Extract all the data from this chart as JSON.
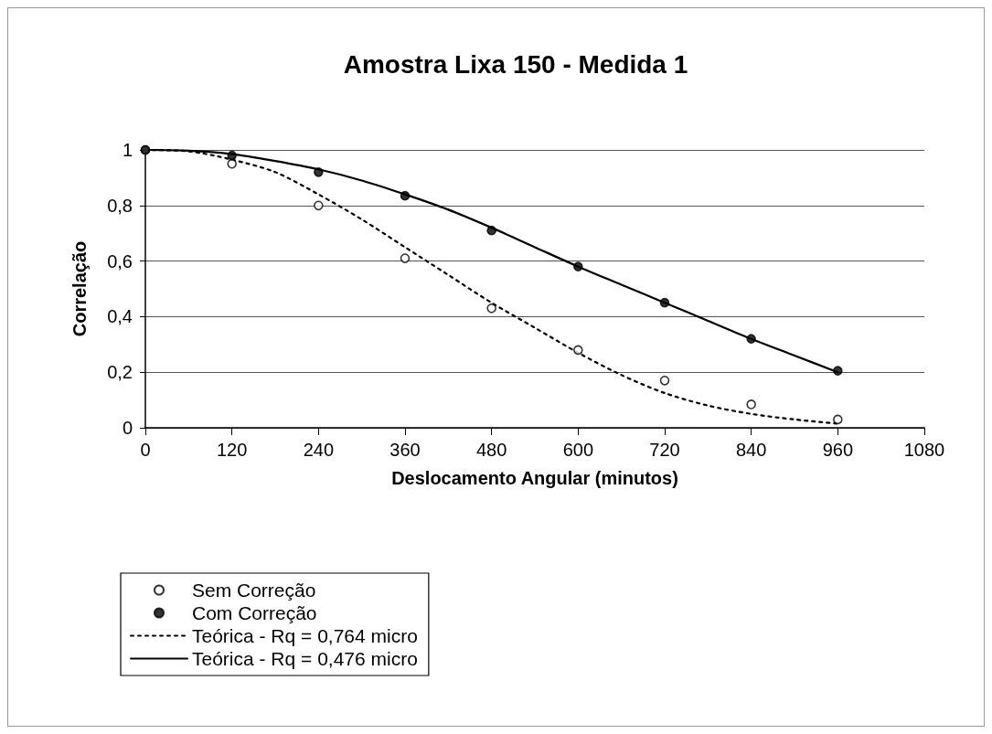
{
  "chart_data": {
    "type": "scatter",
    "title": "Amostra Lixa 150 - Medida 1",
    "xlabel": "Deslocamento Angular (minutos)",
    "ylabel": "Correlação",
    "xlim": [
      0,
      1080
    ],
    "xticks": [
      0,
      120,
      240,
      360,
      480,
      600,
      720,
      840,
      960,
      1080
    ],
    "ylim": [
      0,
      1
    ],
    "yticks": [
      0,
      {
        "value": 0.2,
        "label": "0,2"
      },
      {
        "value": 0.4,
        "label": "0,4"
      },
      {
        "value": 0.6,
        "label": "0,6"
      },
      {
        "value": 0.8,
        "label": "0,8"
      },
      1
    ],
    "grid": "y",
    "legend": "bottom left",
    "series": [
      {
        "name": "Sem Correção",
        "marker": "circle",
        "color": "#ffffff",
        "x": [
          0,
          120,
          240,
          360,
          480,
          600,
          720,
          840,
          960
        ],
        "values": [
          1,
          0.95,
          0.8,
          0.61,
          0.43,
          0.28,
          0.17,
          0.084,
          0.03
        ]
      },
      {
        "name": "Com Correção",
        "marker": "circle",
        "color": "#000000",
        "x": [
          0,
          120,
          240,
          360,
          480,
          600,
          720,
          840,
          960
        ],
        "values": [
          1,
          0.98,
          0.92,
          0.835,
          0.71,
          0.58,
          0.45,
          0.32,
          0.205
        ]
      },
      {
        "name": "Teórica - Rq = 0,764 micro",
        "type": "line",
        "line_style": "dotted",
        "color": "#000000",
        "x": [
          0,
          60,
          120,
          180,
          240,
          300,
          360,
          420,
          480,
          540,
          600,
          660,
          720,
          780,
          840,
          900,
          960
        ],
        "values": [
          1,
          0.995,
          0.965,
          0.92,
          0.84,
          0.75,
          0.65,
          0.55,
          0.45,
          0.36,
          0.27,
          0.19,
          0.125,
          0.08,
          0.05,
          0.03,
          0.015
        ]
      },
      {
        "name": "Teórica - Rq = 0,476 micro",
        "type": "line",
        "line_style": "solid",
        "color": "#000000",
        "x": [
          0,
          60,
          120,
          180,
          240,
          300,
          360,
          420,
          480,
          540,
          600,
          660,
          720,
          780,
          840,
          900,
          960
        ],
        "values": [
          1,
          0.997,
          0.985,
          0.96,
          0.93,
          0.89,
          0.84,
          0.785,
          0.72,
          0.65,
          0.58,
          0.515,
          0.45,
          0.385,
          0.32,
          0.26,
          0.2
        ]
      }
    ]
  }
}
